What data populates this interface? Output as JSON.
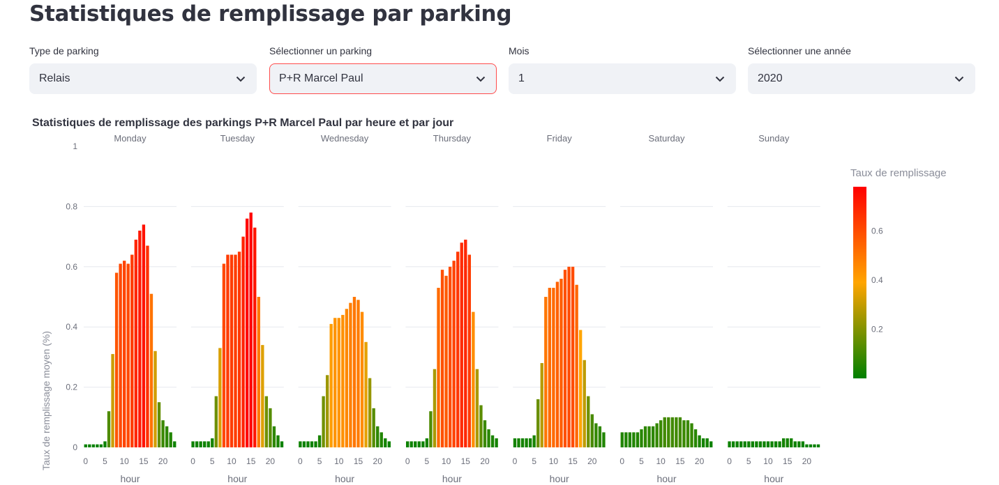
{
  "page": {
    "title": "Statistiques de remplissage par parking"
  },
  "filters": [
    {
      "label": "Type de parking",
      "value": "Relais"
    },
    {
      "label": "Sélectionner un parking",
      "value": "P+R Marcel Paul"
    },
    {
      "label": "Mois",
      "value": "1"
    },
    {
      "label": "Sélectionner une année",
      "value": "2020"
    }
  ],
  "colors": {
    "low": "#008000",
    "mid": "#ffa500",
    "high": "#ff0000",
    "active_border": "#ff4b4b"
  },
  "icons": {
    "select_arrow": "chevron-down-icon"
  },
  "chart_data": {
    "type": "bar",
    "title": "Statistiques de remplissage des parkings P+R Marcel Paul par heure et par jour",
    "xlabel": "hour",
    "ylabel": "Taux de remplissage moyen (%)",
    "ylim": [
      0,
      1
    ],
    "yticks": [
      0,
      0.2,
      0.4,
      0.6,
      0.8,
      1
    ],
    "xticks": [
      0,
      5,
      10,
      15,
      20
    ],
    "grid": true,
    "legend": {
      "title": "Taux de remplissage",
      "position": "right",
      "colorscale_range": [
        0,
        0.78
      ],
      "ticks": [
        0.2,
        0.4,
        0.6
      ]
    },
    "x": [
      0,
      1,
      2,
      3,
      4,
      5,
      6,
      7,
      8,
      9,
      10,
      11,
      12,
      13,
      14,
      15,
      16,
      17,
      18,
      19,
      20,
      21,
      22,
      23
    ],
    "series": [
      {
        "name": "Monday",
        "values": [
          0.01,
          0.01,
          0.01,
          0.01,
          0.01,
          0.02,
          0.12,
          0.31,
          0.58,
          0.61,
          0.62,
          0.61,
          0.64,
          0.69,
          0.72,
          0.74,
          0.67,
          0.51,
          0.32,
          0.15,
          0.09,
          0.07,
          0.05,
          0.02
        ]
      },
      {
        "name": "Tuesday",
        "values": [
          0.02,
          0.02,
          0.02,
          0.02,
          0.02,
          0.03,
          0.17,
          0.33,
          0.61,
          0.64,
          0.64,
          0.64,
          0.65,
          0.7,
          0.76,
          0.78,
          0.73,
          0.5,
          0.34,
          0.17,
          0.13,
          0.07,
          0.04,
          0.02
        ]
      },
      {
        "name": "Wednesday",
        "values": [
          0.02,
          0.02,
          0.02,
          0.02,
          0.02,
          0.04,
          0.17,
          0.24,
          0.41,
          0.43,
          0.43,
          0.44,
          0.46,
          0.48,
          0.5,
          0.49,
          0.45,
          0.35,
          0.23,
          0.13,
          0.07,
          0.05,
          0.03,
          0.02
        ]
      },
      {
        "name": "Thursday",
        "values": [
          0.02,
          0.02,
          0.02,
          0.02,
          0.02,
          0.03,
          0.12,
          0.26,
          0.53,
          0.59,
          0.57,
          0.6,
          0.62,
          0.65,
          0.68,
          0.69,
          0.64,
          0.45,
          0.26,
          0.14,
          0.09,
          0.06,
          0.04,
          0.03
        ]
      },
      {
        "name": "Friday",
        "values": [
          0.03,
          0.03,
          0.03,
          0.03,
          0.03,
          0.04,
          0.16,
          0.28,
          0.5,
          0.53,
          0.53,
          0.55,
          0.56,
          0.59,
          0.6,
          0.6,
          0.54,
          0.39,
          0.29,
          0.17,
          0.11,
          0.08,
          0.07,
          0.05
        ]
      },
      {
        "name": "Saturday",
        "values": [
          0.05,
          0.05,
          0.05,
          0.05,
          0.05,
          0.06,
          0.07,
          0.07,
          0.07,
          0.08,
          0.09,
          0.1,
          0.1,
          0.1,
          0.1,
          0.1,
          0.09,
          0.09,
          0.08,
          0.06,
          0.04,
          0.03,
          0.03,
          0.02
        ]
      },
      {
        "name": "Sunday",
        "values": [
          0.02,
          0.02,
          0.02,
          0.02,
          0.02,
          0.02,
          0.02,
          0.02,
          0.02,
          0.02,
          0.02,
          0.02,
          0.02,
          0.02,
          0.03,
          0.03,
          0.03,
          0.02,
          0.02,
          0.02,
          0.01,
          0.01,
          0.01,
          0.01
        ]
      }
    ]
  }
}
